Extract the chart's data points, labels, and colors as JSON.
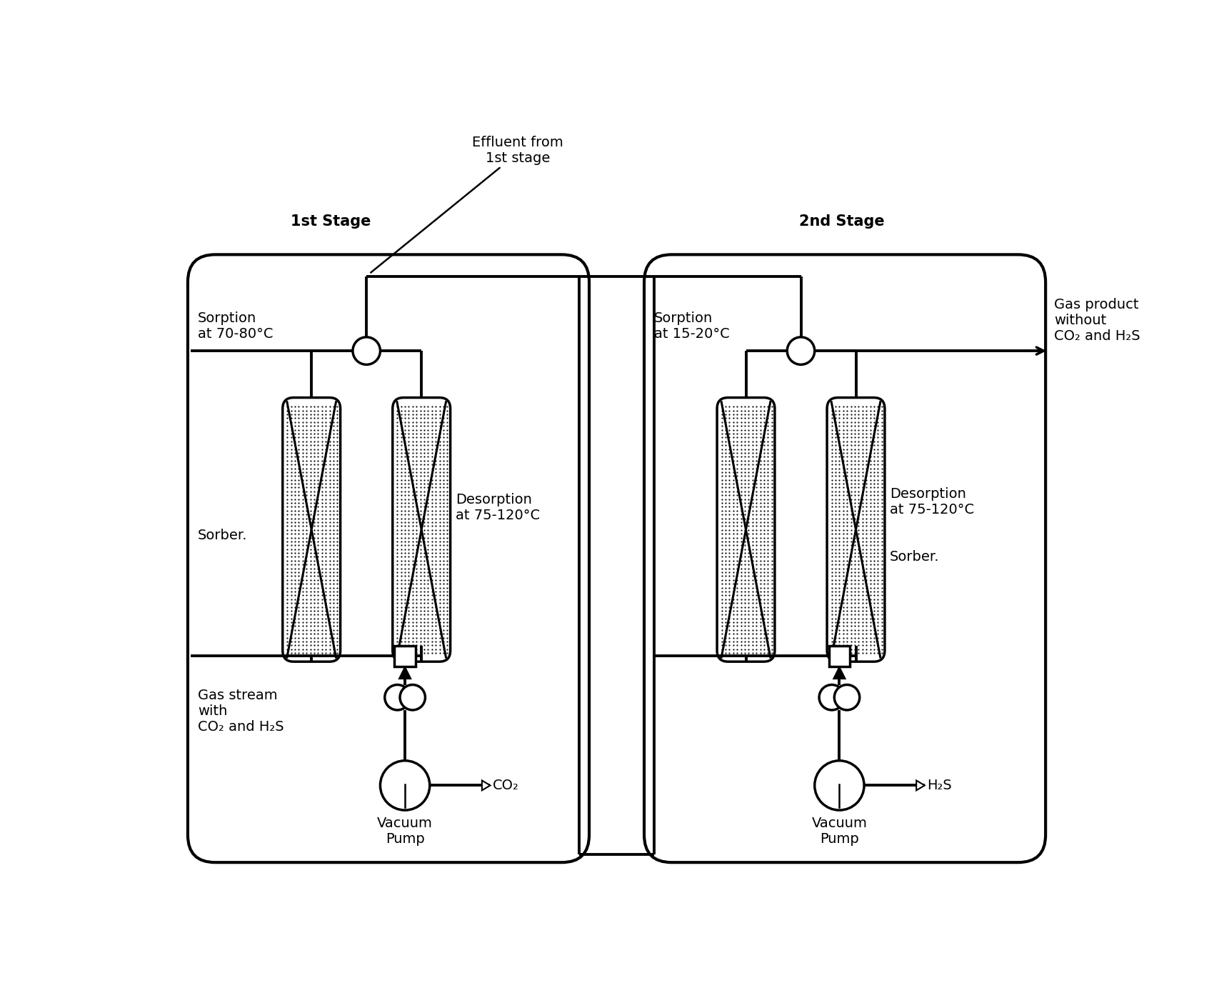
{
  "bg_color": "#ffffff",
  "sorber_fill": "#d8d8d8",
  "line_color": "#000000",
  "stage1_label": "1st Stage",
  "stage2_label": "2nd Stage",
  "effluent_label": "Effluent from\n1st stage",
  "s1_sorption_label": "Sorption\nat 70-80°C",
  "s1_desorption_label": "Desorption\nat 75-120°C",
  "s1_sorber_label": "Sorber.",
  "s1_gas_stream_label": "Gas stream\nwith\nCO₂ and H₂S",
  "s1_vacuum_label": "Vacuum\nPump",
  "s1_co2_label": "CO₂",
  "s2_sorption_label": "Sorption\nat 15-20°C",
  "s2_desorption_label": "Desorption\nat 75-120°C",
  "s2_sorber_label": "Sorber.",
  "s2_gas_product_label": "Gas product\nwithout\nCO₂ and H₂S",
  "s2_vacuum_label": "Vacuum\nPump",
  "s2_h2s_label": "H₂S"
}
